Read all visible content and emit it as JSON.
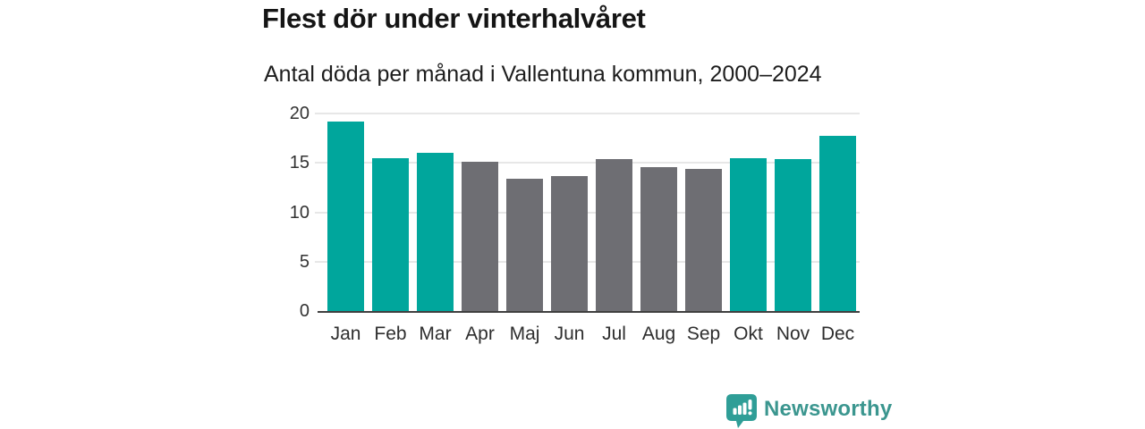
{
  "chart_data": {
    "type": "bar",
    "title": "Flest dör under vinterhalvåret",
    "subtitle": "Antal döda per månad i Vallentuna kommun, 2000–2024",
    "categories": [
      "Jan",
      "Feb",
      "Mar",
      "Apr",
      "Maj",
      "Jun",
      "Jul",
      "Aug",
      "Sep",
      "Okt",
      "Nov",
      "Dec"
    ],
    "values": [
      19.2,
      15.5,
      16.0,
      15.1,
      13.4,
      13.7,
      15.4,
      14.6,
      14.4,
      15.5,
      15.4,
      17.7
    ],
    "highlighted": [
      true,
      true,
      true,
      false,
      false,
      false,
      false,
      false,
      false,
      true,
      true,
      true
    ],
    "xlabel": "",
    "ylabel": "",
    "ylim": [
      0,
      20
    ],
    "yticks": [
      0,
      5,
      10,
      15,
      20
    ],
    "grid": true,
    "legend": "none",
    "colors": {
      "highlight": "#00a69c",
      "muted": "#6e6e73",
      "gridline": "#e7e7e7",
      "baseline": "#3f3f3f",
      "tick_label": "#333333"
    }
  },
  "footer": {
    "brand": "Newsworthy",
    "brand_color": "#3b968f",
    "icon_color": "#2f9e97",
    "icon": "newsworthy-speech-bubble-chart-icon"
  }
}
